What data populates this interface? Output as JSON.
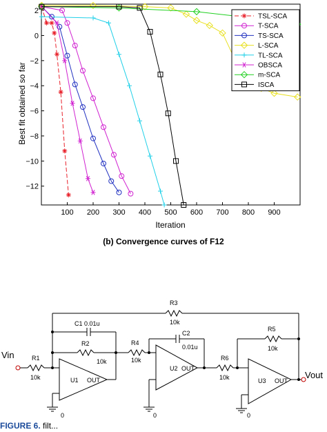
{
  "chart_data": {
    "type": "line",
    "xlabel": "Iteration",
    "ylabel": "Best fit obtained so far",
    "xlim": [
      0,
      1000
    ],
    "ylim": [
      -13.5,
      2.5
    ],
    "xticks": [
      100,
      200,
      300,
      400,
      500,
      600,
      700,
      800,
      900
    ],
    "yticks": [
      2,
      0,
      -2,
      -4,
      -6,
      -8,
      -10,
      -12
    ],
    "ytick_labels": [
      "2",
      "0",
      "−2",
      "−4",
      "−6",
      "−8",
      "−10",
      "−12"
    ],
    "legend_position": "top-right",
    "grid": false,
    "series": [
      {
        "name": "TSL-SCA",
        "color": "#e8202a",
        "dash": "6,3",
        "marker": "asterisk",
        "x": [
          1,
          20,
          40,
          50,
          60,
          75,
          90,
          105
        ],
        "y": [
          2.3,
          1.0,
          1.0,
          0.2,
          -1.5,
          -4.5,
          -9.2,
          -12.7
        ]
      },
      {
        "name": "T-SCA",
        "color": "#d020d0",
        "dash": "",
        "marker": "circle",
        "x": [
          1,
          80,
          100,
          130,
          160,
          200,
          240,
          280,
          310,
          345
        ],
        "y": [
          2.3,
          2.0,
          1.0,
          -0.8,
          -2.8,
          -5.0,
          -7.3,
          -9.5,
          -11.2,
          -12.6
        ]
      },
      {
        "name": "TS-SCA",
        "color": "#2030c0",
        "dash": "",
        "marker": "circle",
        "x": [
          1,
          40,
          70,
          100,
          130,
          160,
          200,
          240,
          270,
          300
        ],
        "y": [
          2.3,
          1.5,
          0.7,
          -1.6,
          -3.9,
          -5.7,
          -8.2,
          -10.2,
          -11.6,
          -12.5
        ]
      },
      {
        "name": "L-SCA",
        "color": "#e8e020",
        "dash": "",
        "marker": "diamond",
        "x": [
          1,
          200,
          400,
          500,
          560,
          600,
          650,
          700,
          750,
          800,
          850,
          900,
          990
        ],
        "y": [
          2.4,
          2.4,
          2.3,
          2.2,
          1.7,
          1.2,
          0.8,
          0.2,
          -2.0,
          -3.5,
          -4.2,
          -4.6,
          -4.9
        ]
      },
      {
        "name": "TL-SCA",
        "color": "#20d0e8",
        "dash": "",
        "marker": "plus",
        "x": [
          1,
          200,
          260,
          300,
          340,
          380,
          420,
          460,
          475
        ],
        "y": [
          1.5,
          1.4,
          1.0,
          -1.5,
          -4.0,
          -6.8,
          -9.6,
          -12.4,
          -13.5
        ]
      },
      {
        "name": "OBSCA",
        "color": "#d020d0",
        "dash": "",
        "marker": "star",
        "x": [
          1,
          60,
          90,
          120,
          150,
          180,
          200
        ],
        "y": [
          2.3,
          1.0,
          -2.0,
          -5.4,
          -8.4,
          -11.4,
          -12.5
        ]
      },
      {
        "name": "m-SCA",
        "color": "#20d020",
        "dash": "",
        "marker": "diamond",
        "x": [
          1,
          300,
          600,
          900,
          990
        ],
        "y": [
          2.3,
          2.2,
          1.9,
          1.2,
          0.9
        ]
      },
      {
        "name": "ISCA",
        "color": "#000000",
        "dash": "",
        "marker": "square",
        "x": [
          1,
          300,
          380,
          420,
          460,
          490,
          520,
          550
        ],
        "y": [
          2.3,
          2.3,
          2.2,
          0.3,
          -3.1,
          -6.2,
          -10.0,
          -13.5
        ]
      }
    ]
  },
  "caption": "(b)  Convergence curves of F12",
  "circuit": {
    "vin": "Vin",
    "vout": "Vout",
    "r1": "R1",
    "r1_value": "10k",
    "c1": "C1  0.01u",
    "r2": "R2",
    "r2_value": "10k",
    "u1": "U1",
    "u1_out": "OUT",
    "r3": "R3",
    "r3_value": "10k",
    "r4": "R4",
    "r4_value": "10k",
    "c2": "C2",
    "c2_value": "0.01u",
    "u2": "U2",
    "u2_out": "OUT",
    "r5": "R5",
    "r5_value": "10k",
    "r6": "R6",
    "r6_value": "10k",
    "u3": "U3",
    "u3_out": "OUT",
    "ground1": "0",
    "ground2": "0",
    "ground3": "0"
  },
  "figure_label": {
    "prefix": "FIGURE 6.",
    "rest": "filt..."
  }
}
